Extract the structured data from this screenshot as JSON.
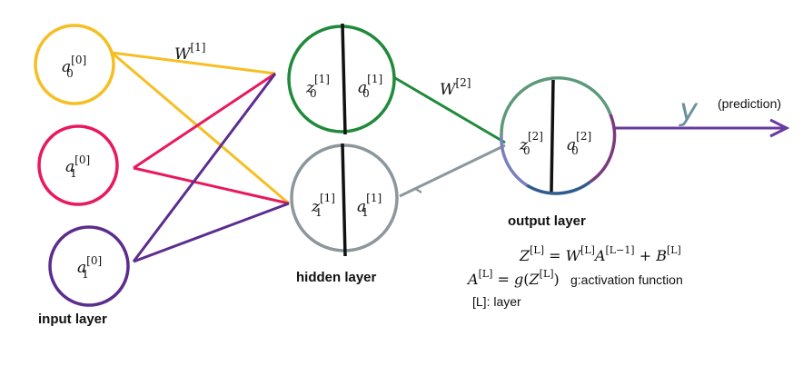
{
  "labels": {
    "input_layer": "input layer",
    "hidden_layer": "hidden layer",
    "output_layer": "output layer",
    "prediction": "(prediction)",
    "y_hat": "y"
  },
  "weights": {
    "w1_base": "W",
    "w1_sup": "[1]",
    "w2_base": "W",
    "w2_sup": "[2]"
  },
  "nodes": {
    "input": [
      {
        "base": "a",
        "sup": "[0]",
        "sub": "0"
      },
      {
        "base": "a",
        "sup": "[0]",
        "sub": "1"
      },
      {
        "base": "a",
        "sup": "[0]",
        "sub": "1"
      }
    ],
    "hidden": [
      {
        "z_base": "z",
        "z_sup": "[1]",
        "z_sub": "0",
        "a_base": "a",
        "a_sup": "[1]",
        "a_sub": "0"
      },
      {
        "z_base": "z",
        "z_sup": "[1]",
        "z_sub": "1",
        "a_base": "a",
        "a_sup": "[1]",
        "a_sub": "1"
      }
    ],
    "output": {
      "z_base": "z",
      "z_sup": "[2]",
      "z_sub": "0",
      "a_base": "a",
      "a_sup": "[2]",
      "a_sub": "0"
    }
  },
  "equations": {
    "eq1_lhs_base": "Z",
    "eq1_lhs_sup": "[L]",
    "eq1_eq": " = ",
    "eq1_w": "W",
    "eq1_w_sup": "[L]",
    "eq1_a": "A",
    "eq1_a_sup": "[L−1]",
    "eq1_plus": " + ",
    "eq1_b": "B",
    "eq1_b_sup": "[L]",
    "eq2_lhs_base": "A",
    "eq2_lhs_sup": "[L]",
    "eq2_eq": " = ",
    "eq2_g": "g",
    "eq2_open": "(",
    "eq2_z": "Z",
    "eq2_z_sup": "[L]",
    "eq2_close": ")",
    "eq2_note": "g:activation function",
    "eq3": "[L]: layer"
  },
  "colors": {
    "input0": "#f5bf23",
    "input1": "#e8195c",
    "input2": "#5b2d8e",
    "hidden0": "#1f8a3a",
    "hidden1": "#8c979c",
    "output_top": "#5b9a78",
    "output_left": "#7a7fbd",
    "output_bottom": "#2f5c8c",
    "output_right": "#7a3b7e",
    "prediction_arrow": "#6a3aa0",
    "prediction_glyph": "#6a8fa0",
    "divider": "#111111"
  }
}
